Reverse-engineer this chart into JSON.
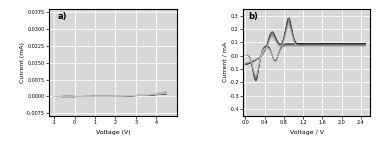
{
  "panel_a": {
    "label": "a)",
    "xlabel": "Voltage (V)",
    "ylabel": "Current (mA)",
    "xlim": [
      -1.25,
      5.0
    ],
    "ylim": [
      -0.0085,
      0.039
    ],
    "xticks": [
      -1,
      0,
      1,
      2,
      3,
      4
    ],
    "yticks": [
      -0.0075,
      0.0,
      0.0075,
      0.015,
      0.0225,
      0.03,
      0.0375
    ],
    "ytick_labels": [
      "-0.0075",
      "0.0000",
      "0.0075",
      "0.0150",
      "0.0225",
      "0.0300",
      "0.0375"
    ],
    "n_cycles": 11,
    "bg_color": "#d8d8d8"
  },
  "panel_b": {
    "label": "b)",
    "xlabel": "Voltage / V",
    "ylabel": "Current / mA",
    "xlim": [
      -0.05,
      2.6
    ],
    "ylim": [
      -0.45,
      0.35
    ],
    "xticks": [
      0.0,
      0.4,
      0.8,
      1.2,
      1.6,
      2.0,
      2.4
    ],
    "yticks": [
      -0.4,
      -0.3,
      -0.2,
      -0.1,
      0.0,
      0.1,
      0.2,
      0.3
    ],
    "ytick_labels": [
      "-0.4",
      "-0.3",
      "-0.2",
      "-0.1",
      "0.0",
      "0.1",
      "0.2",
      "0.3"
    ],
    "n_cycles": 7,
    "bg_color": "#d8d8d8"
  },
  "grid_color": "white",
  "fig_bg": "white"
}
